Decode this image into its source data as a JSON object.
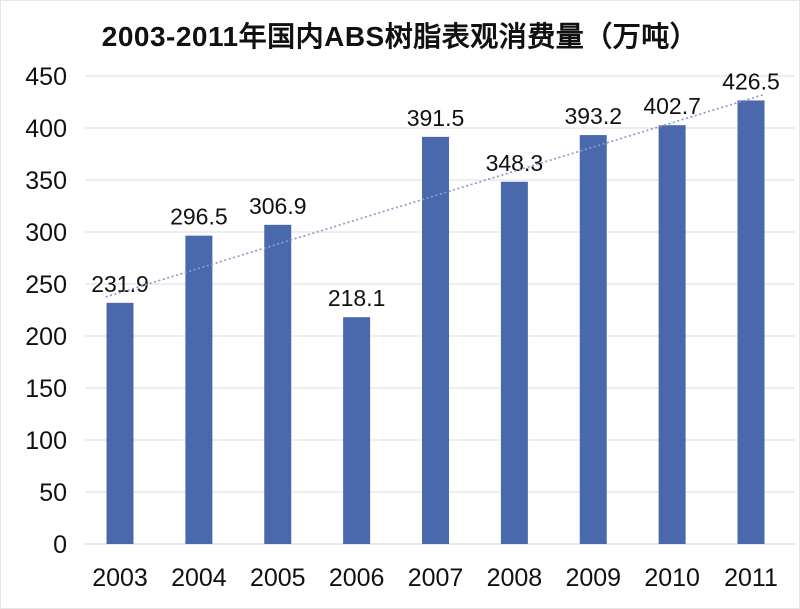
{
  "chart_data": {
    "type": "bar",
    "title": "2003-2011年国内ABS树脂表观消费量（万吨）",
    "categories": [
      "2003",
      "2004",
      "2005",
      "2006",
      "2007",
      "2008",
      "2009",
      "2010",
      "2011"
    ],
    "values": [
      231.9,
      296.5,
      306.9,
      218.1,
      391.5,
      348.3,
      393.2,
      402.7,
      426.5
    ],
    "data_labels": [
      "231.9",
      "296.5",
      "306.9",
      "218.1",
      "391.5",
      "348.3",
      "393.2",
      "402.7",
      "426.5"
    ],
    "y_ticks": [
      0,
      50,
      100,
      150,
      200,
      250,
      300,
      350,
      400,
      450
    ],
    "ylim": [
      0,
      450
    ],
    "xlabel": "",
    "ylabel": "",
    "grid": true,
    "legend": "none",
    "trendline": "linear-dotted"
  },
  "colors": {
    "bar": "#4A69AD",
    "trendline": "#8E9ACD",
    "gridline": "#E8E8E8",
    "baseline": "#E0E0E0",
    "text": "#111111",
    "background": "#FFFFFF"
  }
}
